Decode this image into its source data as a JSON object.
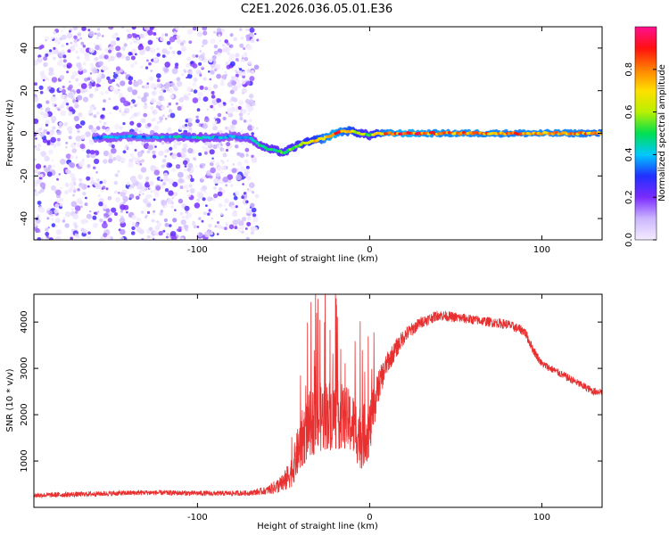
{
  "title": "C2E1.2026.036.05.01.E36",
  "chart_data": [
    {
      "type": "heatmap",
      "xlabel": "Height of straight line (km)",
      "ylabel": "Frequency (Hz)",
      "xlim": [
        -195,
        135
      ],
      "ylim": [
        -50,
        50
      ],
      "xticks": [
        -100,
        0,
        100
      ],
      "xtick_labels": [
        "-100",
        "0",
        "100"
      ],
      "yticks": [
        -40,
        -20,
        0,
        20,
        40
      ],
      "ytick_labels": [
        "-40",
        "-20",
        "0",
        "20",
        "40"
      ],
      "colorbar": {
        "label": "Normalized spectral amplitude",
        "range": [
          0,
          1
        ],
        "ticks": [
          0,
          0.2,
          0.4,
          0.6,
          0.8
        ],
        "tick_labels": [
          "0.0",
          "0.2",
          "0.4",
          "0.6",
          "0.8"
        ],
        "colors": [
          "#f4ecff",
          "#cbb6ff",
          "#7b2bff",
          "#2030ff",
          "#00c8ff",
          "#00e050",
          "#b8f000",
          "#ffe000",
          "#ff8000",
          "#ff1010",
          "#ff1090"
        ]
      },
      "noise_region_x": [
        -195,
        -65
      ],
      "ridge": {
        "x": [
          -160,
          -150,
          -140,
          -130,
          -120,
          -110,
          -100,
          -90,
          -80,
          -70,
          -65,
          -60,
          -55,
          -50,
          -45,
          -40,
          -35,
          -30,
          -25,
          -20,
          -15,
          -10,
          -5,
          0,
          5,
          10,
          20,
          40,
          60,
          80,
          100,
          120,
          135
        ],
        "freq": [
          -2,
          -2,
          -1.5,
          -2,
          -2,
          -1.5,
          -2,
          -2,
          -1.5,
          -2,
          -5,
          -7,
          -8,
          -9,
          -7,
          -5,
          -4,
          -3,
          -2,
          0,
          1,
          1,
          0,
          -1,
          0,
          0,
          0,
          0,
          0,
          0,
          0,
          0,
          0
        ],
        "amplitude": [
          0.35,
          0.4,
          0.38,
          0.35,
          0.4,
          0.4,
          0.42,
          0.4,
          0.38,
          0.4,
          0.45,
          0.5,
          0.5,
          0.55,
          0.55,
          0.6,
          0.65,
          0.7,
          0.8,
          0.85,
          0.75,
          0.7,
          0.6,
          0.55,
          0.7,
          0.8,
          0.85,
          0.8,
          0.8,
          0.78,
          0.8,
          0.78,
          0.75
        ]
      }
    },
    {
      "type": "line",
      "xlabel": "Height of straight line (km)",
      "ylabel": "SNR (10 * v/v)",
      "xlim": [
        -195,
        135
      ],
      "ylim": [
        0,
        4600
      ],
      "xticks": [
        -100,
        0,
        100
      ],
      "xtick_labels": [
        "-100",
        "0",
        "100"
      ],
      "yticks": [
        1000,
        2000,
        3000,
        4000
      ],
      "ytick_labels": [
        "1000",
        "2000",
        "3000",
        "4000"
      ],
      "series": [
        {
          "name": "SNR",
          "color": "#e83030",
          "x": [
            -195,
            -170,
            -150,
            -130,
            -110,
            -90,
            -70,
            -60,
            -50,
            -45,
            -40,
            -35,
            -30,
            -25,
            -20,
            -15,
            -10,
            -5,
            0,
            5,
            10,
            20,
            30,
            40,
            50,
            60,
            70,
            80,
            90,
            95,
            100,
            110,
            120,
            130,
            135
          ],
          "y": [
            260,
            280,
            300,
            320,
            310,
            300,
            310,
            360,
            520,
            800,
            1400,
            1800,
            1900,
            2000,
            2000,
            1950,
            1800,
            1500,
            1700,
            2600,
            3100,
            3700,
            4000,
            4150,
            4100,
            4050,
            4000,
            3950,
            3800,
            3400,
            3100,
            2900,
            2700,
            2500,
            2500
          ],
          "noise": [
            80,
            80,
            80,
            80,
            80,
            80,
            80,
            120,
            300,
            500,
            900,
            1000,
            1100,
            1100,
            1100,
            1000,
            1000,
            1000,
            900,
            500,
            350,
            250,
            180,
            160,
            160,
            150,
            150,
            150,
            150,
            150,
            120,
            120,
            120,
            120,
            120
          ]
        }
      ]
    }
  ]
}
